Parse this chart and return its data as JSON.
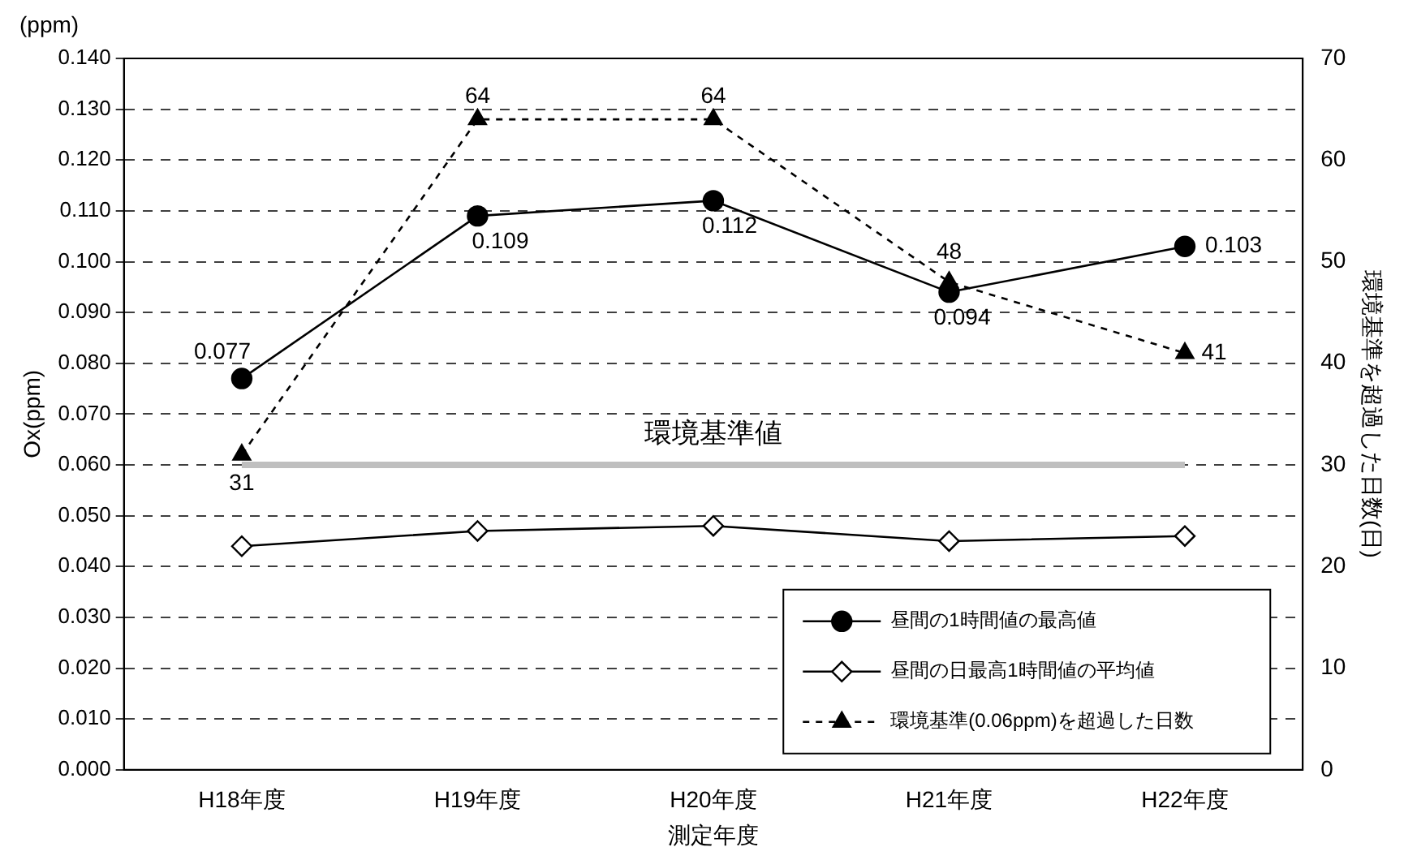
{
  "chart_data": {
    "type": "line",
    "xlabel": "測定年度",
    "ylabel": "Ox(ppm)",
    "y2label": "環境基準を超過した日数(日)",
    "categories": [
      "H18年度",
      "H19年度",
      "H20年度",
      "H21年度",
      "H22年度"
    ],
    "series": [
      {
        "name": "昼間の1時間値の最高値",
        "color": "#000000",
        "marker": "circle",
        "line_style": "solid",
        "values": [
          0.077,
          0.109,
          0.112,
          0.094,
          0.103
        ],
        "value_labels": [
          "0.077",
          "0.109",
          "0.112",
          "0.094",
          "0.103"
        ]
      },
      {
        "name": "昼間の日最高1時間値の平均値",
        "color": "#000000",
        "marker": "diamond",
        "line_style": "solid",
        "values": [
          0.044,
          0.047,
          0.048,
          0.045,
          0.046
        ]
      },
      {
        "name": "環境基準(0.06ppm)を超過した日数",
        "color": "#000000",
        "marker": "triangle",
        "line_style": "dashed",
        "axis": "y2",
        "values": [
          31,
          64,
          64,
          48,
          41
        ],
        "value_labels": [
          "31",
          "64",
          "64",
          "48",
          "41"
        ]
      }
    ],
    "ylim": [
      0,
      0.14
    ],
    "yticks": [
      {
        "value": 0,
        "label": "0.000"
      },
      {
        "value": 0.01,
        "label": "0.010"
      },
      {
        "value": 0.02,
        "label": "0.020"
      },
      {
        "value": 0.03,
        "label": "0.030"
      },
      {
        "value": 0.04,
        "label": "0.040"
      },
      {
        "value": 0.05,
        "label": "0.050"
      },
      {
        "value": 0.06,
        "label": "0.060"
      },
      {
        "value": 0.07,
        "label": "0.070"
      },
      {
        "value": 0.08,
        "label": "0.080"
      },
      {
        "value": 0.09,
        "label": "0.090"
      },
      {
        "value": 0.1,
        "label": "0.100"
      },
      {
        "value": 0.11,
        "label": "0.110"
      },
      {
        "value": 0.12,
        "label": "0.120"
      },
      {
        "value": 0.13,
        "label": "0.130"
      },
      {
        "value": 0.14,
        "label": "0.140"
      }
    ],
    "y2lim": [
      0,
      70
    ],
    "y2ticks": [
      0,
      10,
      20,
      30,
      40,
      50,
      60,
      70
    ],
    "ref_lines": [
      {
        "axis": "y",
        "value": 0.06,
        "label": "環境基準値",
        "color": "#bfbfbf"
      }
    ],
    "grid": "y",
    "legend": "bottom right",
    "annotations": [
      "(ppm)"
    ]
  }
}
